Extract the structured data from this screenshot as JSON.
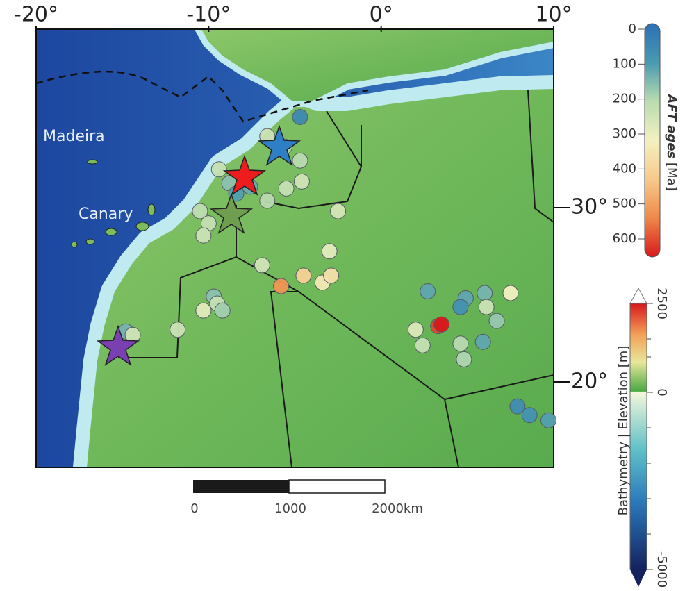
{
  "map": {
    "xticks": [
      {
        "value": -20,
        "label": "-20°"
      },
      {
        "value": -10,
        "label": "-10°"
      },
      {
        "value": 0,
        "label": "0°"
      },
      {
        "value": 10,
        "label": "10°"
      }
    ],
    "yticks": [
      {
        "value": 30,
        "label": "30°"
      },
      {
        "value": 20,
        "label": "20°"
      }
    ],
    "labels": [
      "Madeira",
      "Canary"
    ],
    "samples": [
      {
        "lon": -4.7,
        "lat": 35.2,
        "age": 60
      },
      {
        "lon": -6.6,
        "lat": 34.1,
        "age": 230
      },
      {
        "lon": -4.7,
        "lat": 32.7,
        "age": 200
      },
      {
        "lon": -5.6,
        "lat": 33.5,
        "age": 200
      },
      {
        "lon": -9.4,
        "lat": 32.2,
        "age": 220
      },
      {
        "lon": -8.8,
        "lat": 31.4,
        "age": 160
      },
      {
        "lon": -7.6,
        "lat": 31.2,
        "age": 130
      },
      {
        "lon": -6.6,
        "lat": 30.4,
        "age": 200
      },
      {
        "lon": -5.5,
        "lat": 31.1,
        "age": 220
      },
      {
        "lon": -4.6,
        "lat": 31.5,
        "age": 240
      },
      {
        "lon": -8.4,
        "lat": 30.8,
        "age": 110
      },
      {
        "lon": -10.5,
        "lat": 29.8,
        "age": 210
      },
      {
        "lon": -10.0,
        "lat": 29.1,
        "age": 220
      },
      {
        "lon": -10.3,
        "lat": 28.4,
        "age": 230
      },
      {
        "lon": -2.5,
        "lat": 29.8,
        "age": 250
      },
      {
        "lon": -3.0,
        "lat": 27.5,
        "age": 270
      },
      {
        "lon": -6.9,
        "lat": 26.7,
        "age": 240
      },
      {
        "lon": -5.8,
        "lat": 25.5,
        "age": 480
      },
      {
        "lon": -4.5,
        "lat": 26.1,
        "age": 380
      },
      {
        "lon": -3.4,
        "lat": 25.7,
        "age": 320
      },
      {
        "lon": -2.9,
        "lat": 26.1,
        "age": 340
      },
      {
        "lon": -9.7,
        "lat": 24.9,
        "age": 160
      },
      {
        "lon": -9.5,
        "lat": 24.5,
        "age": 220
      },
      {
        "lon": -10.3,
        "lat": 24.1,
        "age": 270
      },
      {
        "lon": -9.2,
        "lat": 24.1,
        "age": 180
      },
      {
        "lon": -11.8,
        "lat": 23.0,
        "age": 230
      },
      {
        "lon": -14.8,
        "lat": 22.9,
        "age": 140
      },
      {
        "lon": -14.4,
        "lat": 22.7,
        "age": 240
      },
      {
        "lon": 2.7,
        "lat": 25.2,
        "age": 120
      },
      {
        "lon": 4.9,
        "lat": 24.8,
        "age": 120
      },
      {
        "lon": 6.0,
        "lat": 25.1,
        "age": 140
      },
      {
        "lon": 7.5,
        "lat": 25.1,
        "age": 300
      },
      {
        "lon": 4.6,
        "lat": 24.3,
        "age": 80
      },
      {
        "lon": 6.1,
        "lat": 24.3,
        "age": 230
      },
      {
        "lon": 2.0,
        "lat": 23.0,
        "age": 260
      },
      {
        "lon": 3.3,
        "lat": 23.2,
        "age": 560
      },
      {
        "lon": 3.5,
        "lat": 23.3,
        "age": 620
      },
      {
        "lon": 6.7,
        "lat": 23.5,
        "age": 170
      },
      {
        "lon": 2.4,
        "lat": 22.1,
        "age": 220
      },
      {
        "lon": 4.6,
        "lat": 22.2,
        "age": 200
      },
      {
        "lon": 5.9,
        "lat": 22.3,
        "age": 120
      },
      {
        "lon": 4.8,
        "lat": 21.3,
        "age": 190
      },
      {
        "lon": 7.9,
        "lat": 18.6,
        "age": 70
      },
      {
        "lon": 8.6,
        "lat": 18.1,
        "age": 80
      },
      {
        "lon": 9.7,
        "lat": 17.8,
        "age": 110
      }
    ],
    "age_colorbar": {
      "title": "AFT ages",
      "unit": "[Ma]",
      "ticks": [
        0,
        100,
        200,
        300,
        400,
        500,
        600
      ]
    },
    "elevation_colorbar": {
      "title": "Bathymetry | Elevation [m]",
      "ticks": [
        2500,
        0,
        -5000
      ]
    },
    "scale_bar": {
      "labels": [
        "0",
        "1000",
        "2000km"
      ]
    }
  }
}
